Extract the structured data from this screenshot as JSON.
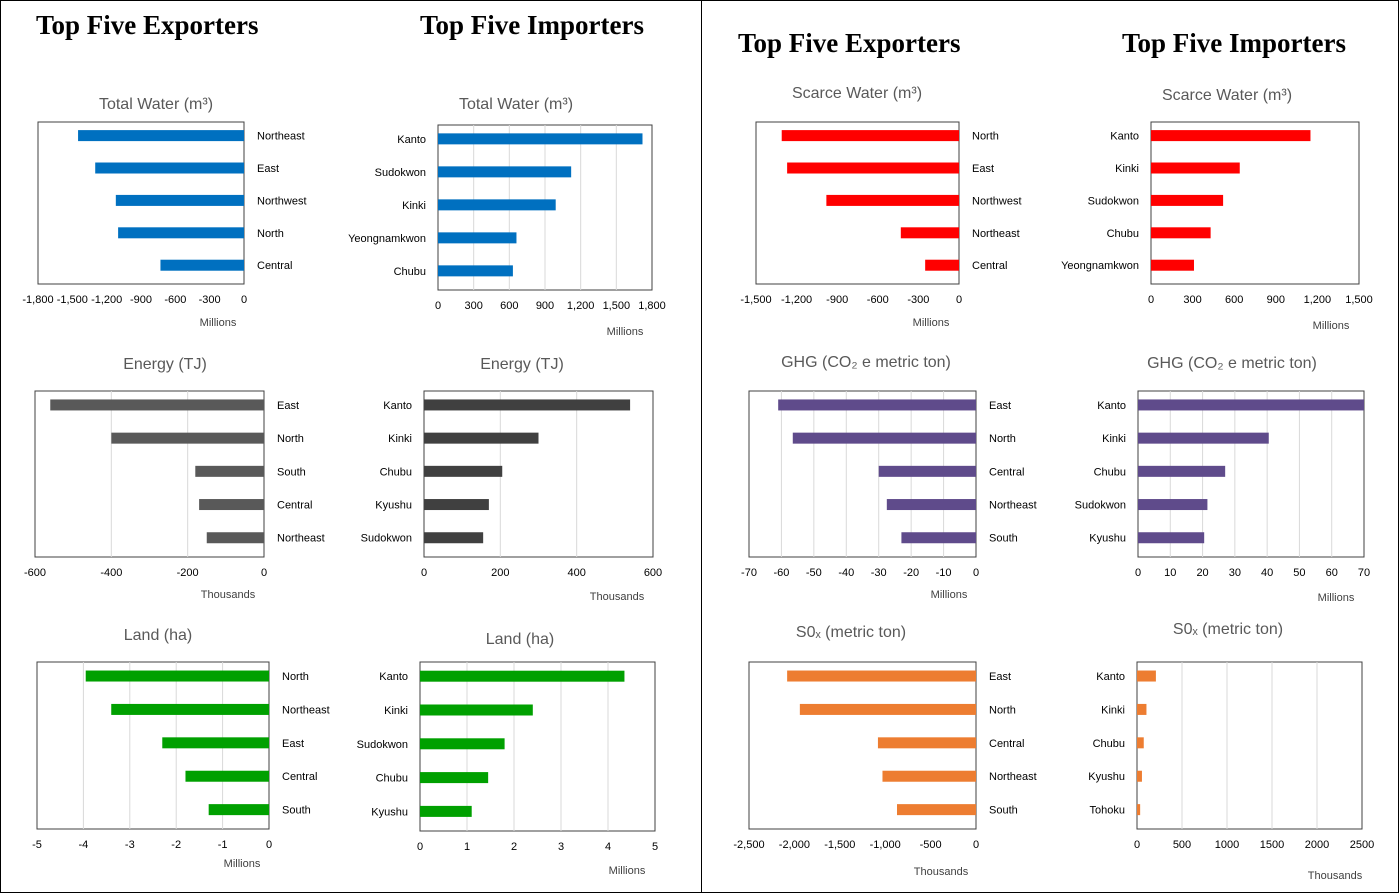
{
  "headings": {
    "left_exporters": "Top Five Exporters",
    "left_importers": "Top Five Importers",
    "right_exporters": "Top Five Exporters",
    "right_importers": "Top Five Importers"
  },
  "colors": {
    "total_water": "#0070C0",
    "energy": "#595959",
    "energy_import": "#404040",
    "land": "#00A000",
    "scarce_water": "#FF0000",
    "ghg": "#5F4B8B",
    "sox": "#ED7D31"
  },
  "chart_data": [
    {
      "id": "tw-exp",
      "type": "bar",
      "orientation": "horizontal",
      "title": "Total Water (m³)",
      "unit": "Millions",
      "categories": [
        "Northeast",
        "East",
        "Northwest",
        "North",
        "Central"
      ],
      "values": [
        -1450,
        -1300,
        -1120,
        -1100,
        -730
      ],
      "xlim": [
        -1800,
        0
      ],
      "ticks": [
        -1800,
        -1500,
        -1200,
        -900,
        -600,
        -300,
        0
      ],
      "tick_labels": [
        "-1,800",
        "-1,500",
        "-1,200",
        "-900",
        "-600",
        "-300",
        "0"
      ],
      "grid": false,
      "label_side": "right",
      "color_key": "total_water"
    },
    {
      "id": "tw-imp",
      "type": "bar",
      "orientation": "horizontal",
      "title": "Total Water (m³)",
      "unit": "Millions",
      "categories": [
        "Kanto",
        "Sudokwon",
        "Kinki",
        "Yeongnamkwon",
        "Chubu"
      ],
      "values": [
        1720,
        1120,
        990,
        660,
        630
      ],
      "xlim": [
        0,
        1800
      ],
      "ticks": [
        0,
        300,
        600,
        900,
        1200,
        1500,
        1800
      ],
      "tick_labels": [
        "0",
        "300",
        "600",
        "900",
        "1,200",
        "1,500",
        "1,800"
      ],
      "grid": true,
      "label_side": "left",
      "color_key": "total_water"
    },
    {
      "id": "en-exp",
      "type": "bar",
      "orientation": "horizontal",
      "title": "Energy (TJ)",
      "unit": "Thousands",
      "categories": [
        "East",
        "North",
        "South",
        "Central",
        "Northeast"
      ],
      "values": [
        -560,
        -400,
        -180,
        -170,
        -150
      ],
      "xlim": [
        -600,
        0
      ],
      "ticks": [
        -600,
        -400,
        -200,
        0
      ],
      "tick_labels": [
        "-600",
        "-400",
        "-200",
        "0"
      ],
      "grid": true,
      "label_side": "right",
      "color_key": "energy"
    },
    {
      "id": "en-imp",
      "type": "bar",
      "orientation": "horizontal",
      "title": "Energy (TJ)",
      "unit": "Thousands",
      "categories": [
        "Kanto",
        "Kinki",
        "Chubu",
        "Kyushu",
        "Sudokwon"
      ],
      "values": [
        540,
        300,
        205,
        170,
        155
      ],
      "xlim": [
        0,
        600
      ],
      "ticks": [
        0,
        200,
        400,
        600
      ],
      "tick_labels": [
        "0",
        "200",
        "400",
        "600"
      ],
      "grid": true,
      "label_side": "left",
      "color_key": "energy_import"
    },
    {
      "id": "land-exp",
      "type": "bar",
      "orientation": "horizontal",
      "title": "Land (ha)",
      "unit": "Millions",
      "categories": [
        "North",
        "Northeast",
        "East",
        "Central",
        "South"
      ],
      "values": [
        -3.95,
        -3.4,
        -2.3,
        -1.8,
        -1.3
      ],
      "xlim": [
        -5,
        0
      ],
      "ticks": [
        -5,
        -4,
        -3,
        -2,
        -1,
        0
      ],
      "tick_labels": [
        "-5",
        "-4",
        "-3",
        "-2",
        "-1",
        "0"
      ],
      "grid": true,
      "label_side": "right",
      "color_key": "land"
    },
    {
      "id": "land-imp",
      "type": "bar",
      "orientation": "horizontal",
      "title": "Land (ha)",
      "unit": "Millions",
      "categories": [
        "Kanto",
        "Kinki",
        "Sudokwon",
        "Chubu",
        "Kyushu"
      ],
      "values": [
        4.35,
        2.4,
        1.8,
        1.45,
        1.1
      ],
      "xlim": [
        0,
        5
      ],
      "ticks": [
        0,
        1,
        2,
        3,
        4,
        5
      ],
      "tick_labels": [
        "0",
        "1",
        "2",
        "3",
        "4",
        "5"
      ],
      "grid": true,
      "label_side": "left",
      "color_key": "land"
    },
    {
      "id": "sw-exp",
      "type": "bar",
      "orientation": "horizontal",
      "title": "Scarce Water (m³)",
      "unit": "Millions",
      "categories": [
        "North",
        "East",
        "Northwest",
        "Northeast",
        "Central"
      ],
      "values": [
        -1310,
        -1270,
        -980,
        -430,
        -250
      ],
      "xlim": [
        -1500,
        0
      ],
      "ticks": [
        -1500,
        -1200,
        -900,
        -600,
        -300,
        0
      ],
      "tick_labels": [
        "-1,500",
        "-1,200",
        "-900",
        "-600",
        "-300",
        "0"
      ],
      "grid": false,
      "label_side": "right",
      "color_key": "scarce_water"
    },
    {
      "id": "sw-imp",
      "type": "bar",
      "orientation": "horizontal",
      "title": "Scarce Water (m³)",
      "unit": "Millions",
      "categories": [
        "Kanto",
        "Kinki",
        "Sudokwon",
        "Chubu",
        "Yeongnamkwon"
      ],
      "values": [
        1150,
        640,
        520,
        430,
        310
      ],
      "xlim": [
        0,
        1500
      ],
      "ticks": [
        0,
        300,
        600,
        900,
        1200,
        1500
      ],
      "tick_labels": [
        "0",
        "300",
        "600",
        "900",
        "1,200",
        "1,500"
      ],
      "grid": false,
      "label_side": "left",
      "color_key": "scarce_water"
    },
    {
      "id": "ghg-exp",
      "type": "bar",
      "orientation": "horizontal",
      "title": "GHG (CO₂ e metric ton)",
      "unit": "Millions",
      "categories": [
        "East",
        "North",
        "Central",
        "Northeast",
        "South"
      ],
      "values": [
        -61,
        -56.5,
        -30,
        -27.5,
        -23
      ],
      "xlim": [
        -70,
        0
      ],
      "ticks": [
        -70,
        -60,
        -50,
        -40,
        -30,
        -20,
        -10,
        0
      ],
      "tick_labels": [
        "-70",
        "-60",
        "-50",
        "-40",
        "-30",
        "-20",
        "-10",
        "0"
      ],
      "grid": true,
      "label_side": "right",
      "color_key": "ghg"
    },
    {
      "id": "ghg-imp",
      "type": "bar",
      "orientation": "horizontal",
      "title": "GHG (CO₂ e metric ton)",
      "unit": "Millions",
      "categories": [
        "Kanto",
        "Kinki",
        "Chubu",
        "Sudokwon",
        "Kyushu"
      ],
      "values": [
        70,
        40.5,
        27,
        21.5,
        20.5
      ],
      "xlim": [
        0,
        70
      ],
      "ticks": [
        0,
        10,
        20,
        30,
        40,
        50,
        60,
        70
      ],
      "tick_labels": [
        "0",
        "10",
        "20",
        "30",
        "40",
        "50",
        "60",
        "70"
      ],
      "grid": true,
      "label_side": "left",
      "color_key": "ghg"
    },
    {
      "id": "sox-exp",
      "type": "bar",
      "orientation": "horizontal",
      "title": "S0ₓ (metric ton)",
      "unit": "Thousands",
      "categories": [
        "East",
        "North",
        "Central",
        "Northeast",
        "South"
      ],
      "values": [
        -2080,
        -1940,
        -1080,
        -1030,
        -870
      ],
      "xlim": [
        -2500,
        0
      ],
      "ticks": [
        -2500,
        -2000,
        -1500,
        -1000,
        -500,
        0
      ],
      "tick_labels": [
        "-2,500",
        "-2,000",
        "-1,500",
        "-1,000",
        "-500",
        "0"
      ],
      "grid": false,
      "label_side": "right",
      "color_key": "sox"
    },
    {
      "id": "sox-imp",
      "type": "bar",
      "orientation": "horizontal",
      "title": "S0ₓ (metric ton)",
      "unit": "Thousands",
      "categories": [
        "Kanto",
        "Kinki",
        "Chubu",
        "Kyushu",
        "Tohoku"
      ],
      "values": [
        210,
        105,
        75,
        55,
        35
      ],
      "xlim": [
        0,
        2500
      ],
      "ticks": [
        0,
        500,
        1000,
        1500,
        2000,
        2500
      ],
      "tick_labels": [
        "0",
        "500",
        "1000",
        "1500",
        "2000",
        "2500"
      ],
      "grid": true,
      "label_side": "left",
      "color_key": "sox"
    }
  ]
}
